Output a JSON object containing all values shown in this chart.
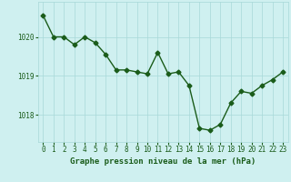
{
  "x": [
    0,
    1,
    2,
    3,
    4,
    5,
    6,
    7,
    8,
    9,
    10,
    11,
    12,
    13,
    14,
    15,
    16,
    17,
    18,
    19,
    20,
    21,
    22,
    23
  ],
  "y": [
    1020.55,
    1020.0,
    1020.0,
    1019.8,
    1020.0,
    1019.85,
    1019.55,
    1019.15,
    1019.15,
    1019.1,
    1019.05,
    1019.6,
    1019.05,
    1019.1,
    1018.75,
    1017.65,
    1017.6,
    1017.75,
    1018.3,
    1018.6,
    1018.55,
    1018.75,
    1018.9,
    1019.1
  ],
  "line_color": "#1a5c1a",
  "marker": "D",
  "marker_size": 2.5,
  "line_width": 1.0,
  "xlabel": "Graphe pression niveau de la mer (hPa)",
  "ylabel": "",
  "ylim": [
    1017.3,
    1020.9
  ],
  "yticks": [
    1018,
    1019,
    1020
  ],
  "xticks": [
    0,
    1,
    2,
    3,
    4,
    5,
    6,
    7,
    8,
    9,
    10,
    11,
    12,
    13,
    14,
    15,
    16,
    17,
    18,
    19,
    20,
    21,
    22,
    23
  ],
  "bg_color": "#cff0f0",
  "grid_color": "#a8d8d8",
  "label_color": "#1a5c1a",
  "tick_color": "#1a5c1a",
  "xlabel_fontsize": 6.5,
  "tick_fontsize": 5.5
}
